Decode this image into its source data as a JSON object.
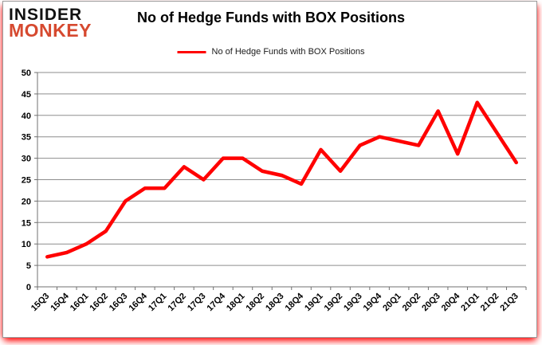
{
  "logo": {
    "line1": "INSIDER",
    "line2": "MONKEY"
  },
  "header": {
    "title": "No of Hedge Funds with BOX Positions"
  },
  "legend": {
    "label": "No of Hedge Funds with BOX Positions",
    "line_color": "#ff0000"
  },
  "colors": {
    "series_red": "#ff0000",
    "logo_red": "#d6492f",
    "grid": "#8e8e8e",
    "axis": "#707070",
    "text": "#000000",
    "glow_red": "#ff0000"
  },
  "chart_data": {
    "type": "line",
    "title": "No of Hedge Funds with BOX Positions",
    "xlabel": "",
    "ylabel": "",
    "ylim": [
      0,
      50
    ],
    "ytick_step": 5,
    "grid": "horizontal",
    "legend_position": "top-center",
    "categories": [
      "15Q3",
      "15Q4",
      "16Q1",
      "16Q2",
      "16Q3",
      "16Q4",
      "17Q1",
      "17Q2",
      "17Q3",
      "17Q4",
      "18Q1",
      "18Q2",
      "18Q3",
      "18Q4",
      "19Q1",
      "19Q2",
      "19Q3",
      "19Q4",
      "20Q1",
      "20Q2",
      "20Q3",
      "20Q4",
      "21Q1",
      "21Q2",
      "21Q3"
    ],
    "series": [
      {
        "name": "No of Hedge Funds with BOX Positions",
        "color": "#ff0000",
        "values": [
          7,
          8,
          10,
          13,
          20,
          23,
          23,
          28,
          25,
          30,
          30,
          27,
          26,
          24,
          32,
          27,
          33,
          35,
          34,
          33,
          41,
          31,
          43,
          36,
          29
        ]
      }
    ]
  }
}
